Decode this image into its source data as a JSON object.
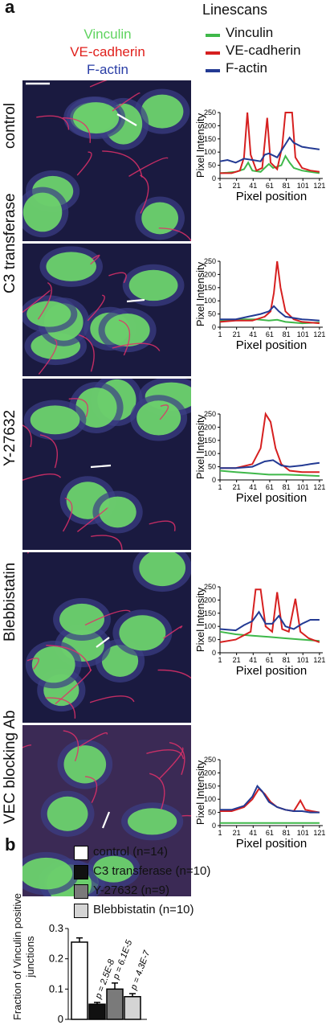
{
  "panel_a": {
    "letter": "a",
    "stain_labels": [
      {
        "text": "Vinculin",
        "color": "#5fd35f"
      },
      {
        "text": "VE-cadherin",
        "color": "#e0201c"
      },
      {
        "text": "F-actin",
        "color": "#2a3ea6"
      }
    ],
    "linescan_title": "Linescans",
    "linescan_legend": [
      {
        "text": "Vinculin",
        "color": "#3fb84a"
      },
      {
        "text": "VE-cadherin",
        "color": "#d62020"
      },
      {
        "text": "F-actin",
        "color": "#233a93"
      }
    ],
    "conditions": [
      "control",
      "C3 transferase",
      "Y-27632",
      "Blebbistatin",
      "VEC blocking Ab"
    ],
    "axis": {
      "ylabel": "Pixel Intensity",
      "xlabel": "Pixel position",
      "xticks": [
        "1",
        "21",
        "41",
        "61",
        "81",
        "101",
        "121"
      ],
      "xticks_control": [
        "1",
        "21",
        "41",
        "61",
        "81",
        "101",
        "121"
      ],
      "xticks_c3": [
        "1",
        "21",
        "41",
        "61",
        "81",
        "101",
        "121"
      ],
      "xticks_y": [
        "1",
        "21",
        "41",
        "61",
        "81",
        "101",
        "121"
      ],
      "xticks_bleb": [
        "1",
        "21",
        "41",
        "61",
        "81",
        "101",
        "121"
      ],
      "xticks_vec": [
        "1",
        "21",
        "41",
        "61",
        "81",
        "101",
        "121"
      ],
      "yticks": [
        "0",
        "50",
        "100",
        "150",
        "200",
        "250"
      ]
    }
  },
  "panel_b": {
    "letter": "b",
    "legend": [
      {
        "text": "control (n=14)",
        "fill": "#ffffff"
      },
      {
        "text": "C3 transferase (n=10)",
        "fill": "#111111"
      },
      {
        "text": "Y-27632 (n=9)",
        "fill": "#7a7a7a"
      },
      {
        "text": "Blebbistatin (n=10)",
        "fill": "#d4d4d4"
      }
    ],
    "ylabel": "Fraction of Vinculin positive junctions",
    "yticks": [
      "0",
      "0.1",
      "0.2",
      "0.3"
    ],
    "pvalues": [
      "p = 2.5E-8",
      "p = 6.1E-5",
      "p = 4.3E-7"
    ]
  },
  "chart_data": [
    {
      "type": "line",
      "title": "control",
      "xlabel": "Pixel position",
      "ylabel": "Pixel Intensity",
      "xlim": [
        1,
        125
      ],
      "ylim": [
        0,
        250
      ],
      "series": [
        {
          "name": "Vinculin",
          "color": "#3fb84a",
          "points": [
            [
              1,
              20
            ],
            [
              10,
              22
            ],
            [
              20,
              25
            ],
            [
              30,
              35
            ],
            [
              35,
              60
            ],
            [
              40,
              30
            ],
            [
              50,
              25
            ],
            [
              55,
              40
            ],
            [
              60,
              55
            ],
            [
              65,
              40
            ],
            [
              75,
              50
            ],
            [
              80,
              85
            ],
            [
              85,
              60
            ],
            [
              90,
              40
            ],
            [
              100,
              30
            ],
            [
              110,
              25
            ],
            [
              121,
              20
            ]
          ]
        },
        {
          "name": "VE-cadherin",
          "color": "#d62020",
          "points": [
            [
              1,
              20
            ],
            [
              15,
              20
            ],
            [
              25,
              30
            ],
            [
              30,
              80
            ],
            [
              34,
              250
            ],
            [
              38,
              90
            ],
            [
              45,
              30
            ],
            [
              52,
              40
            ],
            [
              58,
              230
            ],
            [
              62,
              60
            ],
            [
              70,
              35
            ],
            [
              76,
              120
            ],
            [
              80,
              250
            ],
            [
              88,
              250
            ],
            [
              92,
              80
            ],
            [
              100,
              40
            ],
            [
              110,
              30
            ],
            [
              121,
              25
            ]
          ]
        },
        {
          "name": "F-actin",
          "color": "#233a93",
          "points": [
            [
              1,
              65
            ],
            [
              10,
              70
            ],
            [
              20,
              60
            ],
            [
              30,
              75
            ],
            [
              40,
              70
            ],
            [
              50,
              65
            ],
            [
              55,
              90
            ],
            [
              60,
              95
            ],
            [
              70,
              80
            ],
            [
              80,
              130
            ],
            [
              85,
              155
            ],
            [
              90,
              135
            ],
            [
              100,
              120
            ],
            [
              110,
              115
            ],
            [
              121,
              110
            ]
          ]
        }
      ]
    },
    {
      "type": "line",
      "title": "C3 transferase",
      "xlabel": "Pixel position",
      "ylabel": "Pixel Intensity",
      "xlim": [
        1,
        125
      ],
      "ylim": [
        0,
        250
      ],
      "series": [
        {
          "name": "Vinculin",
          "color": "#3fb84a",
          "points": [
            [
              1,
              25
            ],
            [
              20,
              28
            ],
            [
              30,
              30
            ],
            [
              45,
              30
            ],
            [
              60,
              25
            ],
            [
              70,
              28
            ],
            [
              80,
              20
            ],
            [
              100,
              15
            ],
            [
              121,
              18
            ]
          ]
        },
        {
          "name": "VE-cadherin",
          "color": "#d62020",
          "points": [
            [
              1,
              20
            ],
            [
              20,
              25
            ],
            [
              40,
              25
            ],
            [
              55,
              40
            ],
            [
              62,
              60
            ],
            [
              66,
              130
            ],
            [
              70,
              250
            ],
            [
              74,
              150
            ],
            [
              80,
              60
            ],
            [
              90,
              30
            ],
            [
              100,
              20
            ],
            [
              121,
              15
            ]
          ]
        },
        {
          "name": "F-actin",
          "color": "#233a93",
          "points": [
            [
              1,
              30
            ],
            [
              20,
              30
            ],
            [
              35,
              40
            ],
            [
              50,
              50
            ],
            [
              60,
              60
            ],
            [
              66,
              80
            ],
            [
              72,
              60
            ],
            [
              80,
              40
            ],
            [
              100,
              30
            ],
            [
              121,
              25
            ]
          ]
        }
      ]
    },
    {
      "type": "line",
      "title": "Y-27632",
      "xlabel": "Pixel position",
      "ylabel": "Pixel Intensity",
      "xlim": [
        1,
        125
      ],
      "ylim": [
        0,
        250
      ],
      "series": [
        {
          "name": "Vinculin",
          "color": "#3fb84a",
          "points": [
            [
              1,
              35
            ],
            [
              20,
              30
            ],
            [
              40,
              25
            ],
            [
              60,
              20
            ],
            [
              80,
              20
            ],
            [
              100,
              18
            ],
            [
              121,
              15
            ]
          ]
        },
        {
          "name": "VE-cadherin",
          "color": "#d62020",
          "points": [
            [
              1,
              45
            ],
            [
              20,
              45
            ],
            [
              40,
              60
            ],
            [
              50,
              120
            ],
            [
              56,
              250
            ],
            [
              62,
              220
            ],
            [
              68,
              120
            ],
            [
              75,
              60
            ],
            [
              85,
              35
            ],
            [
              100,
              30
            ],
            [
              121,
              30
            ]
          ]
        },
        {
          "name": "F-actin",
          "color": "#233a93",
          "points": [
            [
              1,
              45
            ],
            [
              20,
              45
            ],
            [
              40,
              50
            ],
            [
              55,
              70
            ],
            [
              65,
              75
            ],
            [
              75,
              55
            ],
            [
              85,
              50
            ],
            [
              100,
              55
            ],
            [
              110,
              60
            ],
            [
              121,
              65
            ]
          ]
        }
      ]
    },
    {
      "type": "line",
      "title": "Blebbistatin",
      "xlabel": "Pixel position",
      "ylabel": "Pixel Intensity",
      "xlim": [
        1,
        125
      ],
      "ylim": [
        0,
        250
      ],
      "series": [
        {
          "name": "Vinculin",
          "color": "#3fb84a",
          "points": [
            [
              1,
              80
            ],
            [
              20,
              70
            ],
            [
              40,
              65
            ],
            [
              60,
              60
            ],
            [
              80,
              55
            ],
            [
              100,
              50
            ],
            [
              121,
              45
            ]
          ]
        },
        {
          "name": "VE-cadherin",
          "color": "#d62020",
          "points": [
            [
              1,
              40
            ],
            [
              20,
              50
            ],
            [
              38,
              80
            ],
            [
              44,
              240
            ],
            [
              50,
              240
            ],
            [
              56,
              100
            ],
            [
              64,
              80
            ],
            [
              70,
              230
            ],
            [
              76,
              90
            ],
            [
              84,
              80
            ],
            [
              92,
              205
            ],
            [
              98,
              80
            ],
            [
              108,
              55
            ],
            [
              121,
              40
            ]
          ]
        },
        {
          "name": "F-actin",
          "color": "#233a93",
          "points": [
            [
              1,
              90
            ],
            [
              20,
              85
            ],
            [
              30,
              105
            ],
            [
              40,
              120
            ],
            [
              48,
              155
            ],
            [
              56,
              110
            ],
            [
              64,
              110
            ],
            [
              72,
              140
            ],
            [
              80,
              100
            ],
            [
              90,
              90
            ],
            [
              100,
              110
            ],
            [
              110,
              125
            ],
            [
              121,
              125
            ]
          ]
        }
      ]
    },
    {
      "type": "line",
      "title": "VEC blocking Ab",
      "xlabel": "Pixel position",
      "ylabel": "Pixel Intensity",
      "xlim": [
        1,
        125
      ],
      "ylim": [
        0,
        250
      ],
      "series": [
        {
          "name": "Vinculin",
          "color": "#3fb84a",
          "points": [
            [
              1,
              10
            ],
            [
              20,
              10
            ],
            [
              40,
              10
            ],
            [
              60,
              10
            ],
            [
              80,
              10
            ],
            [
              100,
              10
            ],
            [
              121,
              10
            ]
          ]
        },
        {
          "name": "VE-cadherin",
          "color": "#d62020",
          "points": [
            [
              1,
              55
            ],
            [
              15,
              55
            ],
            [
              30,
              70
            ],
            [
              40,
              100
            ],
            [
              48,
              140
            ],
            [
              55,
              120
            ],
            [
              62,
              90
            ],
            [
              70,
              70
            ],
            [
              80,
              60
            ],
            [
              90,
              55
            ],
            [
              98,
              95
            ],
            [
              104,
              60
            ],
            [
              112,
              55
            ],
            [
              121,
              50
            ]
          ]
        },
        {
          "name": "F-actin",
          "color": "#233a93",
          "points": [
            [
              1,
              60
            ],
            [
              15,
              60
            ],
            [
              30,
              75
            ],
            [
              40,
              110
            ],
            [
              46,
              150
            ],
            [
              52,
              130
            ],
            [
              60,
              90
            ],
            [
              70,
              70
            ],
            [
              80,
              60
            ],
            [
              90,
              55
            ],
            [
              100,
              55
            ],
            [
              110,
              50
            ],
            [
              121,
              50
            ]
          ]
        }
      ]
    },
    {
      "type": "bar",
      "title": "",
      "xlabel": "",
      "ylabel": "Fraction of Vinculin positive junctions",
      "ylim": [
        0,
        0.3
      ],
      "categories": [
        "control",
        "C3 transferase",
        "Y-27632",
        "Blebbistatin"
      ],
      "values": [
        0.255,
        0.05,
        0.1,
        0.075
      ],
      "errors": [
        0.014,
        0.006,
        0.02,
        0.01
      ],
      "fills": [
        "#ffffff",
        "#111111",
        "#7a7a7a",
        "#d4d4d4"
      ]
    }
  ]
}
